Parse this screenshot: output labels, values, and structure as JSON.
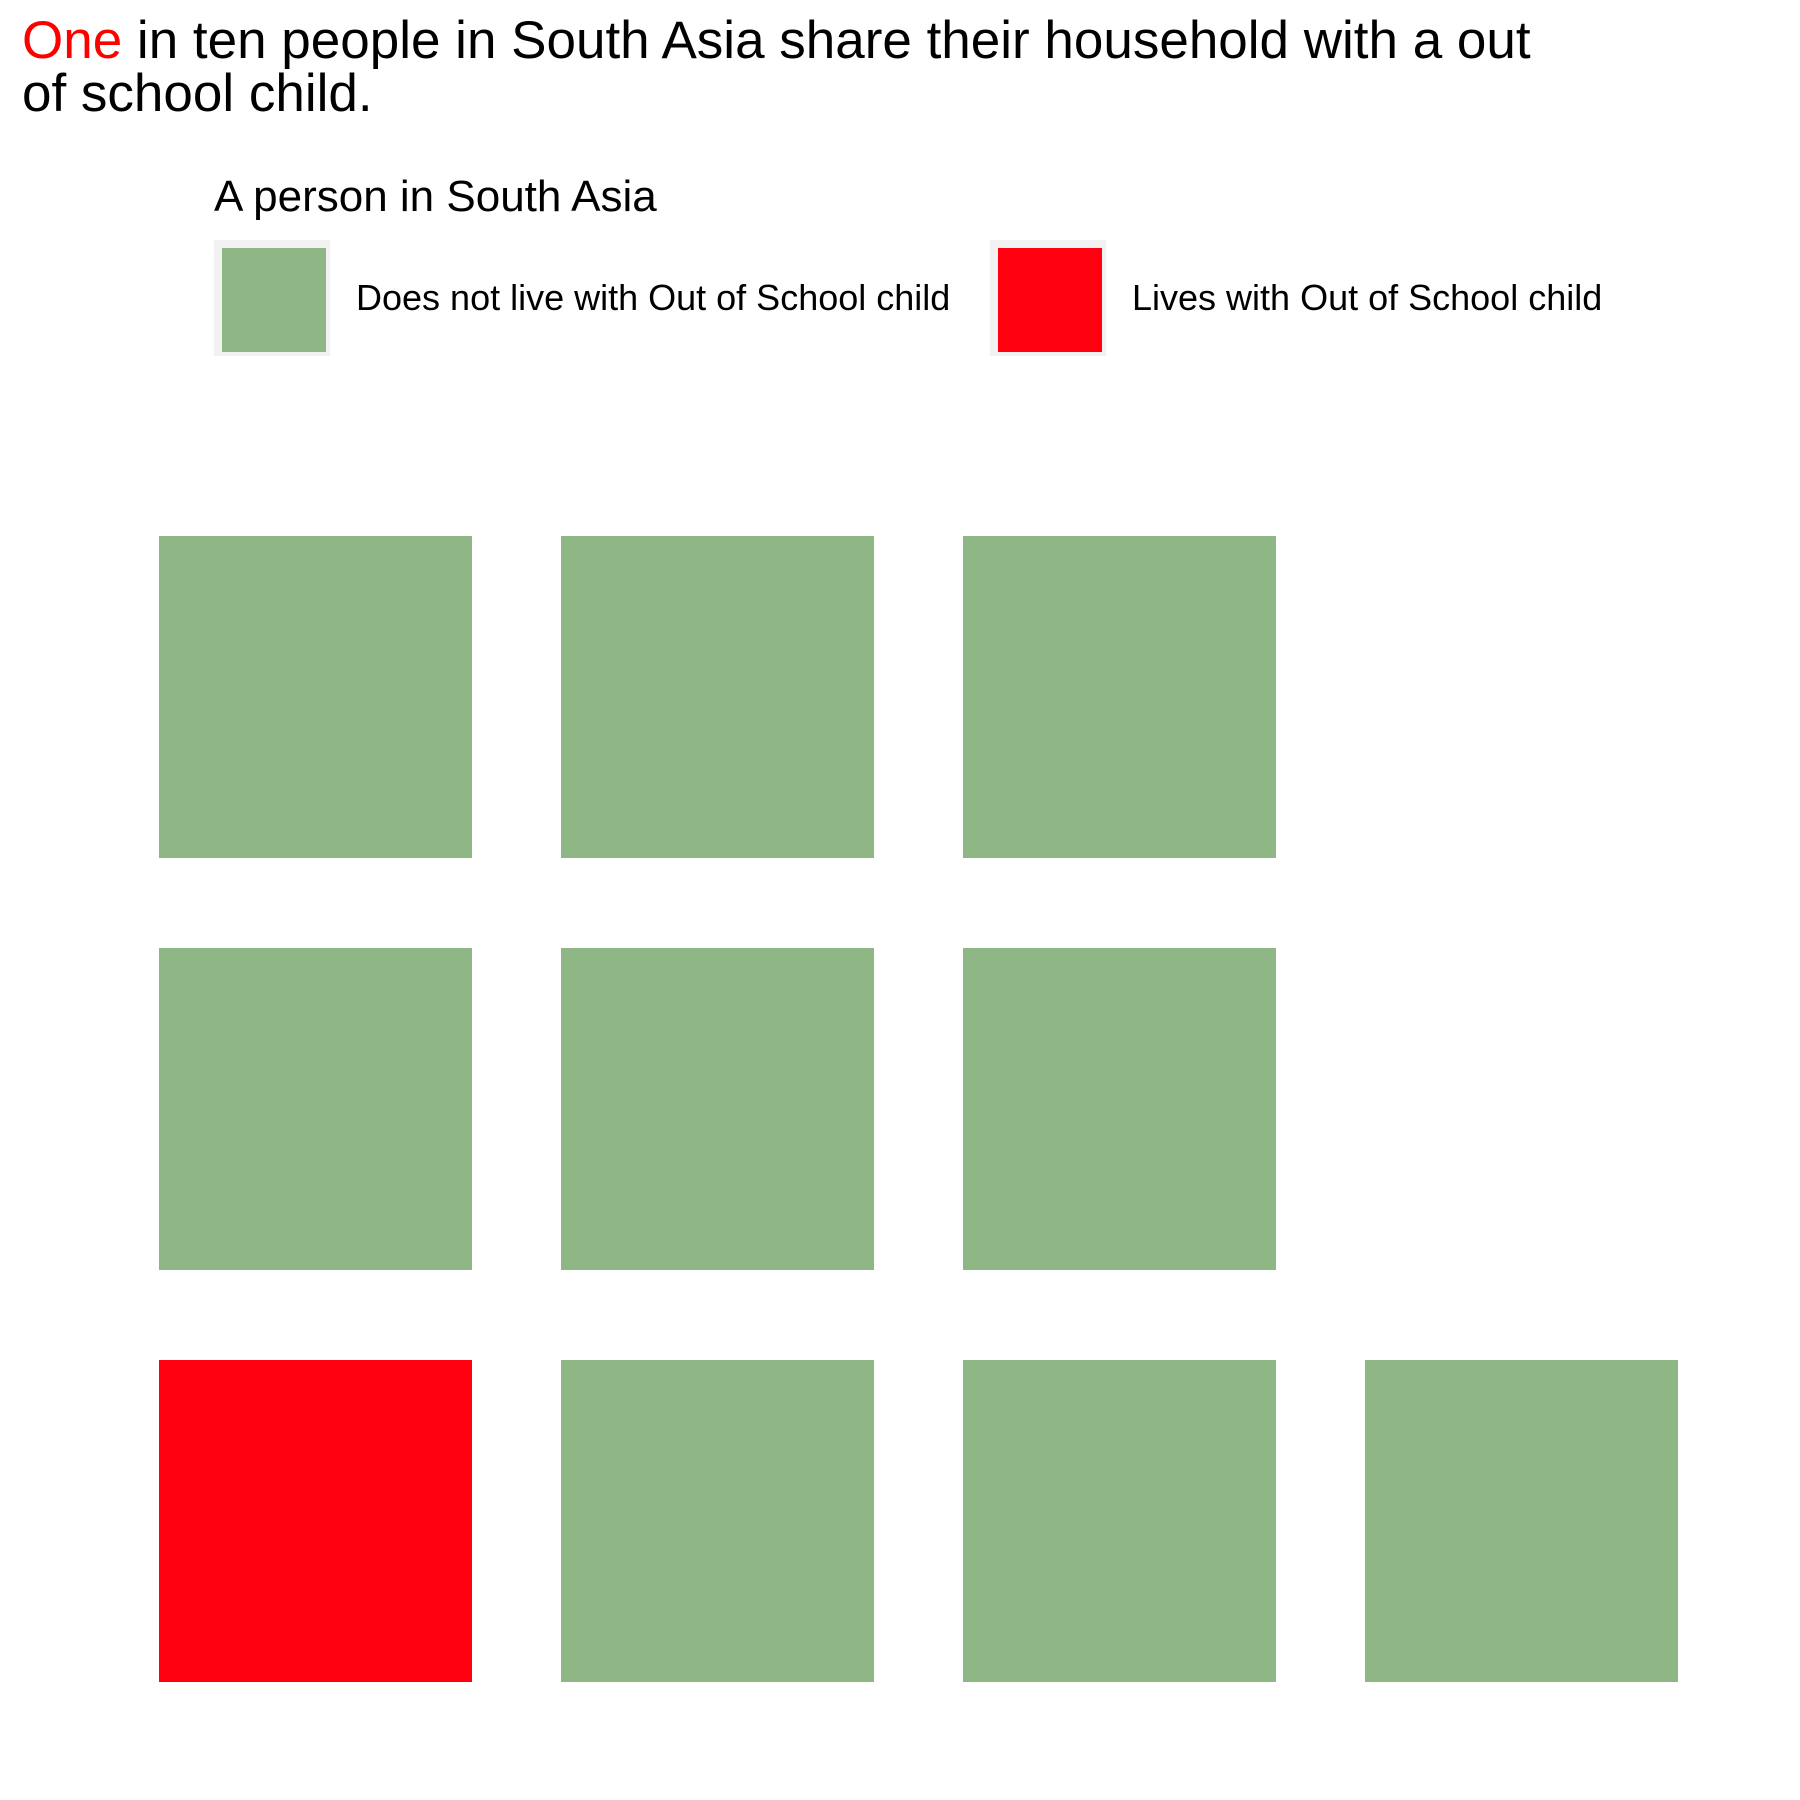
{
  "title": {
    "highlight": "One",
    "rest": " in ten people in South Asia share their household with a out of school child."
  },
  "legend": {
    "title": "A person in South Asia",
    "position": "top",
    "items": [
      {
        "label": "Does not live with Out of School child",
        "color": "#8fb685"
      },
      {
        "label": "Lives with Out of School child",
        "color": "#ff0010"
      }
    ]
  },
  "chart_data": {
    "type": "waffle",
    "title": "One in ten people in South Asia share their household with a out of school child.",
    "legend_title": "A person in South Asia",
    "categories": [
      "Does not live with Out of School child",
      "Lives with Out of School child"
    ],
    "values": [
      9,
      1
    ],
    "total": 10,
    "colors": [
      "#8fb685",
      "#ff0010"
    ],
    "cells": [
      "Does not live with Out of School child",
      "Does not live with Out of School child",
      "Does not live with Out of School child",
      "Does not live with Out of School child",
      "Does not live with Out of School child",
      "Does not live with Out of School child",
      "Lives with Out of School child",
      "Does not live with Out of School child",
      "Does not live with Out of School child",
      "Does not live with Out of School child"
    ],
    "grid": false
  }
}
